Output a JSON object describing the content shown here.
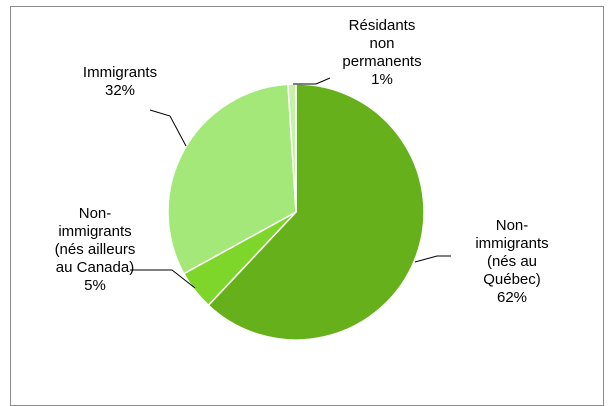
{
  "chart_data": {
    "type": "pie",
    "slices": [
      {
        "name": "Non-immigrants (nés au Québec)",
        "value": 62,
        "label_lines": [
          "Non-",
          "immigrants",
          "(nés au",
          "Québec)",
          "62%"
        ],
        "color": "#66b01c"
      },
      {
        "name": "Non-immigrants (nés ailleurs au Canada)",
        "value": 5,
        "label_lines": [
          "Non-",
          "immigrants",
          "(nés ailleurs",
          "au Canada)",
          "5%"
        ],
        "color": "#7fd62a"
      },
      {
        "name": "Immigrants",
        "value": 32,
        "label_lines": [
          "Immigrants",
          "32%"
        ],
        "color": "#a3e878"
      },
      {
        "name": "Résidants non permanents",
        "value": 1,
        "label_lines": [
          "Résidants",
          "non",
          "permanents",
          "1%"
        ],
        "color": "#c9f0ab"
      }
    ],
    "legend": false
  }
}
